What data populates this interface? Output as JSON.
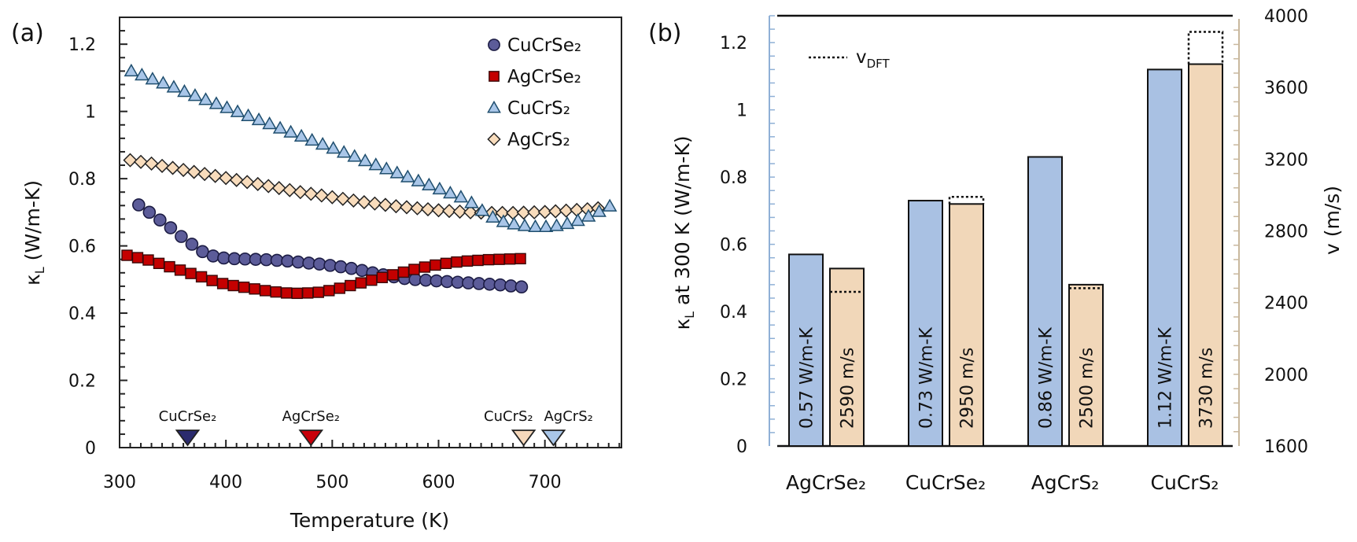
{
  "chart_data": [
    {
      "panel": "(a)",
      "type": "scatter",
      "xlabel": "Temperature (K)",
      "ylabel": {
        "main": "κ",
        "sub": "L",
        "rest": " (W/m-K)"
      },
      "xlim": [
        300,
        772
      ],
      "ylim": [
        0,
        1.28
      ],
      "xticks": [
        "300",
        "400",
        "500",
        "600",
        "700"
      ],
      "yticks": [
        "0",
        "0.2",
        "0.4",
        "0.6",
        "0.8",
        "1",
        "1.2"
      ],
      "legend_position": "top-right",
      "series": [
        {
          "name": "AgCrS₂",
          "marker": "diamond",
          "color": "#f8dcbc",
          "stroke": "#222222",
          "x": [
            310,
            320,
            330,
            340,
            350,
            360,
            370,
            380,
            390,
            400,
            410,
            420,
            430,
            440,
            450,
            460,
            470,
            480,
            490,
            500,
            510,
            520,
            530,
            540,
            550,
            560,
            570,
            580,
            590,
            600,
            610,
            620,
            630,
            640,
            650,
            660,
            670,
            680,
            690,
            700,
            710,
            720,
            730,
            740,
            750
          ],
          "y": [
            0.855,
            0.85,
            0.845,
            0.838,
            0.832,
            0.826,
            0.82,
            0.814,
            0.808,
            0.802,
            0.796,
            0.79,
            0.784,
            0.778,
            0.772,
            0.766,
            0.76,
            0.755,
            0.75,
            0.745,
            0.74,
            0.735,
            0.73,
            0.726,
            0.722,
            0.718,
            0.715,
            0.712,
            0.709,
            0.706,
            0.704,
            0.702,
            0.7,
            0.699,
            0.698,
            0.698,
            0.698,
            0.699,
            0.7,
            0.701,
            0.703,
            0.705,
            0.707,
            0.709,
            0.712
          ]
        },
        {
          "name": "CuCrS₂",
          "marker": "triangle",
          "color": "#a9c6e8",
          "stroke": "#1f4e6e",
          "x": [
            311,
            321,
            331,
            341,
            351,
            361,
            371,
            381,
            391,
            401,
            411,
            421,
            431,
            441,
            451,
            461,
            471,
            481,
            491,
            501,
            511,
            521,
            531,
            541,
            551,
            561,
            571,
            581,
            591,
            601,
            611,
            621,
            631,
            641,
            651,
            661,
            671,
            681,
            691,
            701,
            711,
            721,
            731,
            741,
            751,
            761
          ],
          "y": [
            1.12,
            1.108,
            1.096,
            1.084,
            1.072,
            1.059,
            1.047,
            1.035,
            1.023,
            1.011,
            0.999,
            0.987,
            0.975,
            0.963,
            0.95,
            0.938,
            0.926,
            0.914,
            0.902,
            0.89,
            0.878,
            0.866,
            0.853,
            0.841,
            0.829,
            0.817,
            0.805,
            0.793,
            0.781,
            0.769,
            0.757,
            0.745,
            0.728,
            0.705,
            0.685,
            0.672,
            0.665,
            0.66,
            0.657,
            0.657,
            0.66,
            0.666,
            0.675,
            0.688,
            0.702,
            0.718
          ]
        },
        {
          "name": "CuCrSe₂",
          "marker": "circle",
          "color": "#5c5c99",
          "stroke": "#1c1c44",
          "x": [
            318,
            328,
            338,
            348,
            358,
            368,
            378,
            388,
            398,
            408,
            418,
            428,
            438,
            448,
            458,
            468,
            478,
            488,
            498,
            508,
            518,
            528,
            538,
            548,
            558,
            568,
            578,
            588,
            598,
            608,
            618,
            628,
            638,
            648,
            658,
            668,
            678
          ],
          "y": [
            0.722,
            0.7,
            0.677,
            0.654,
            0.628,
            0.605,
            0.583,
            0.57,
            0.564,
            0.562,
            0.561,
            0.56,
            0.559,
            0.557,
            0.555,
            0.552,
            0.549,
            0.546,
            0.542,
            0.538,
            0.533,
            0.527,
            0.52,
            0.514,
            0.508,
            0.503,
            0.5,
            0.498,
            0.496,
            0.494,
            0.492,
            0.49,
            0.488,
            0.486,
            0.484,
            0.481,
            0.478
          ]
        },
        {
          "name": "AgCrSe₂",
          "marker": "square",
          "color": "#c40000",
          "stroke": "#3a0808",
          "x": [
            307,
            317,
            327,
            337,
            347,
            357,
            367,
            377,
            387,
            397,
            407,
            417,
            427,
            437,
            447,
            457,
            467,
            477,
            487,
            497,
            507,
            517,
            527,
            537,
            547,
            557,
            567,
            577,
            587,
            597,
            607,
            617,
            627,
            637,
            647,
            657,
            667,
            677
          ],
          "y": [
            0.572,
            0.565,
            0.558,
            0.548,
            0.538,
            0.528,
            0.518,
            0.508,
            0.497,
            0.488,
            0.482,
            0.477,
            0.472,
            0.467,
            0.463,
            0.46,
            0.459,
            0.46,
            0.462,
            0.467,
            0.474,
            0.482,
            0.49,
            0.498,
            0.506,
            0.514,
            0.522,
            0.53,
            0.537,
            0.543,
            0.548,
            0.552,
            0.555,
            0.557,
            0.559,
            0.56,
            0.561,
            0.562
          ]
        }
      ],
      "legend_order": [
        "CuCrSe₂",
        "AgCrSe₂",
        "CuCrS₂",
        "AgCrS₂"
      ],
      "annotations": [
        {
          "label": "CuCrSe₂",
          "x": 364,
          "color": "#2b2b6e"
        },
        {
          "label": "AgCrSe₂",
          "x": 480,
          "color": "#c8000a"
        },
        {
          "label": "CuCrS₂",
          "x": 680,
          "color": "#f6d8bb"
        },
        {
          "label": "AgCrS₂",
          "x": 708,
          "color": "#a9c6e8"
        }
      ]
    },
    {
      "panel": "(b)",
      "type": "bar",
      "categories": [
        "AgCrSe₂",
        "CuCrSe₂",
        "AgCrS₂",
        "CuCrS₂"
      ],
      "ylabel": {
        "main": "κ",
        "sub": "L",
        "rest": " at 300 K (W/m-K)"
      },
      "y2label": "v (m/s)",
      "ylim": [
        0,
        1.28
      ],
      "y2lim": [
        1600,
        4000
      ],
      "yticks": [
        "0",
        "0.2",
        "0.4",
        "0.6",
        "0.8",
        "1",
        "1.2"
      ],
      "y2ticks": [
        "1600",
        "2000",
        "2400",
        "2800",
        "3200",
        "3600",
        "4000"
      ],
      "kappa": {
        "color": "#a9c1e3",
        "values": [
          0.57,
          0.73,
          0.86,
          1.12
        ],
        "labels": [
          "0.57 W/m-K",
          "0.73 W/m-K",
          "0.86 W/m-K",
          "1.12 W/m-K"
        ]
      },
      "velocity": {
        "color": "#f1d7b9",
        "values": [
          2590,
          2950,
          2500,
          3730
        ],
        "labels": [
          "2590 m/s",
          "2950 m/s",
          "2500 m/s",
          "3730 m/s"
        ]
      },
      "v_dft": {
        "legend_main": "v",
        "legend_sub": "DFT",
        "values": [
          2460,
          2990,
          2480,
          3910
        ]
      },
      "axis_colors": {
        "left": "#8fb0d6",
        "right": "#c9b89e"
      }
    }
  ]
}
